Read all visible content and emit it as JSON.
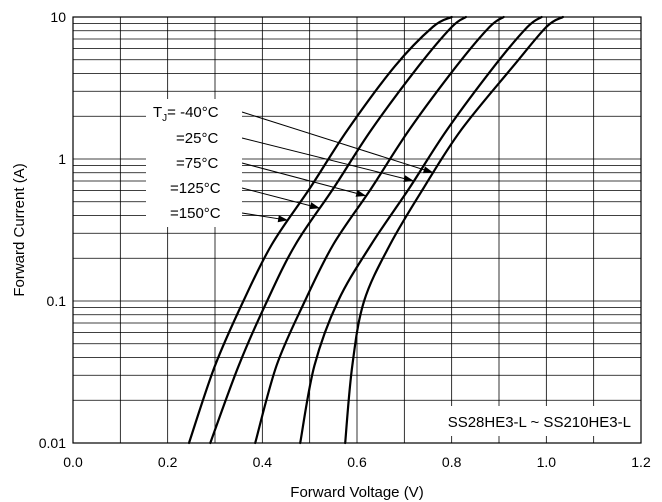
{
  "chart_data": {
    "type": "line",
    "title": "",
    "xlabel": "Forward Voltage (V)",
    "ylabel": "Forward Current (A)",
    "xlim": [
      0.0,
      1.2
    ],
    "ylim": [
      0.01,
      10
    ],
    "yscale": "log",
    "grid": true,
    "x_ticks": [
      "0.0",
      "0.2",
      "0.4",
      "0.6",
      "0.8",
      "1.0",
      "1.2"
    ],
    "y_ticks": [
      "0.01",
      "0.1",
      "1",
      "10"
    ],
    "annotation": "SS28HE3-L ~ SS210HE3-L",
    "series": [
      {
        "name": "150°C",
        "x": [
          0.245,
          0.3,
          0.36,
          0.42,
          0.5,
          0.58,
          0.68,
          0.76,
          0.8
        ],
        "y": [
          0.01,
          0.035,
          0.1,
          0.25,
          0.62,
          1.6,
          4.5,
          8.5,
          10
        ]
      },
      {
        "name": "125°C",
        "x": [
          0.29,
          0.35,
          0.41,
          0.47,
          0.55,
          0.63,
          0.73,
          0.8,
          0.83
        ],
        "y": [
          0.01,
          0.035,
          0.1,
          0.25,
          0.62,
          1.6,
          4.5,
          8.5,
          10
        ]
      },
      {
        "name": "75°C",
        "x": [
          0.385,
          0.43,
          0.49,
          0.55,
          0.63,
          0.71,
          0.81,
          0.88,
          0.91
        ],
        "y": [
          0.01,
          0.035,
          0.1,
          0.25,
          0.62,
          1.6,
          4.5,
          8.5,
          10
        ]
      },
      {
        "name": "25°C",
        "x": [
          0.48,
          0.51,
          0.56,
          0.63,
          0.71,
          0.79,
          0.89,
          0.96,
          0.99
        ],
        "y": [
          0.01,
          0.035,
          0.1,
          0.25,
          0.62,
          1.6,
          4.5,
          8.5,
          10
        ]
      },
      {
        "name": "-40°C",
        "x": [
          0.575,
          0.59,
          0.615,
          0.67,
          0.74,
          0.82,
          0.93,
          1.0,
          1.035
        ],
        "y": [
          0.01,
          0.035,
          0.1,
          0.25,
          0.62,
          1.6,
          4.5,
          8.5,
          10
        ]
      }
    ],
    "legend_labels": {
      "prefix": "T",
      "subscript": "J",
      "first": "= -40°C",
      "rest": [
        "=25°C",
        "=75°C",
        "=125°C",
        "=150°C"
      ]
    }
  }
}
